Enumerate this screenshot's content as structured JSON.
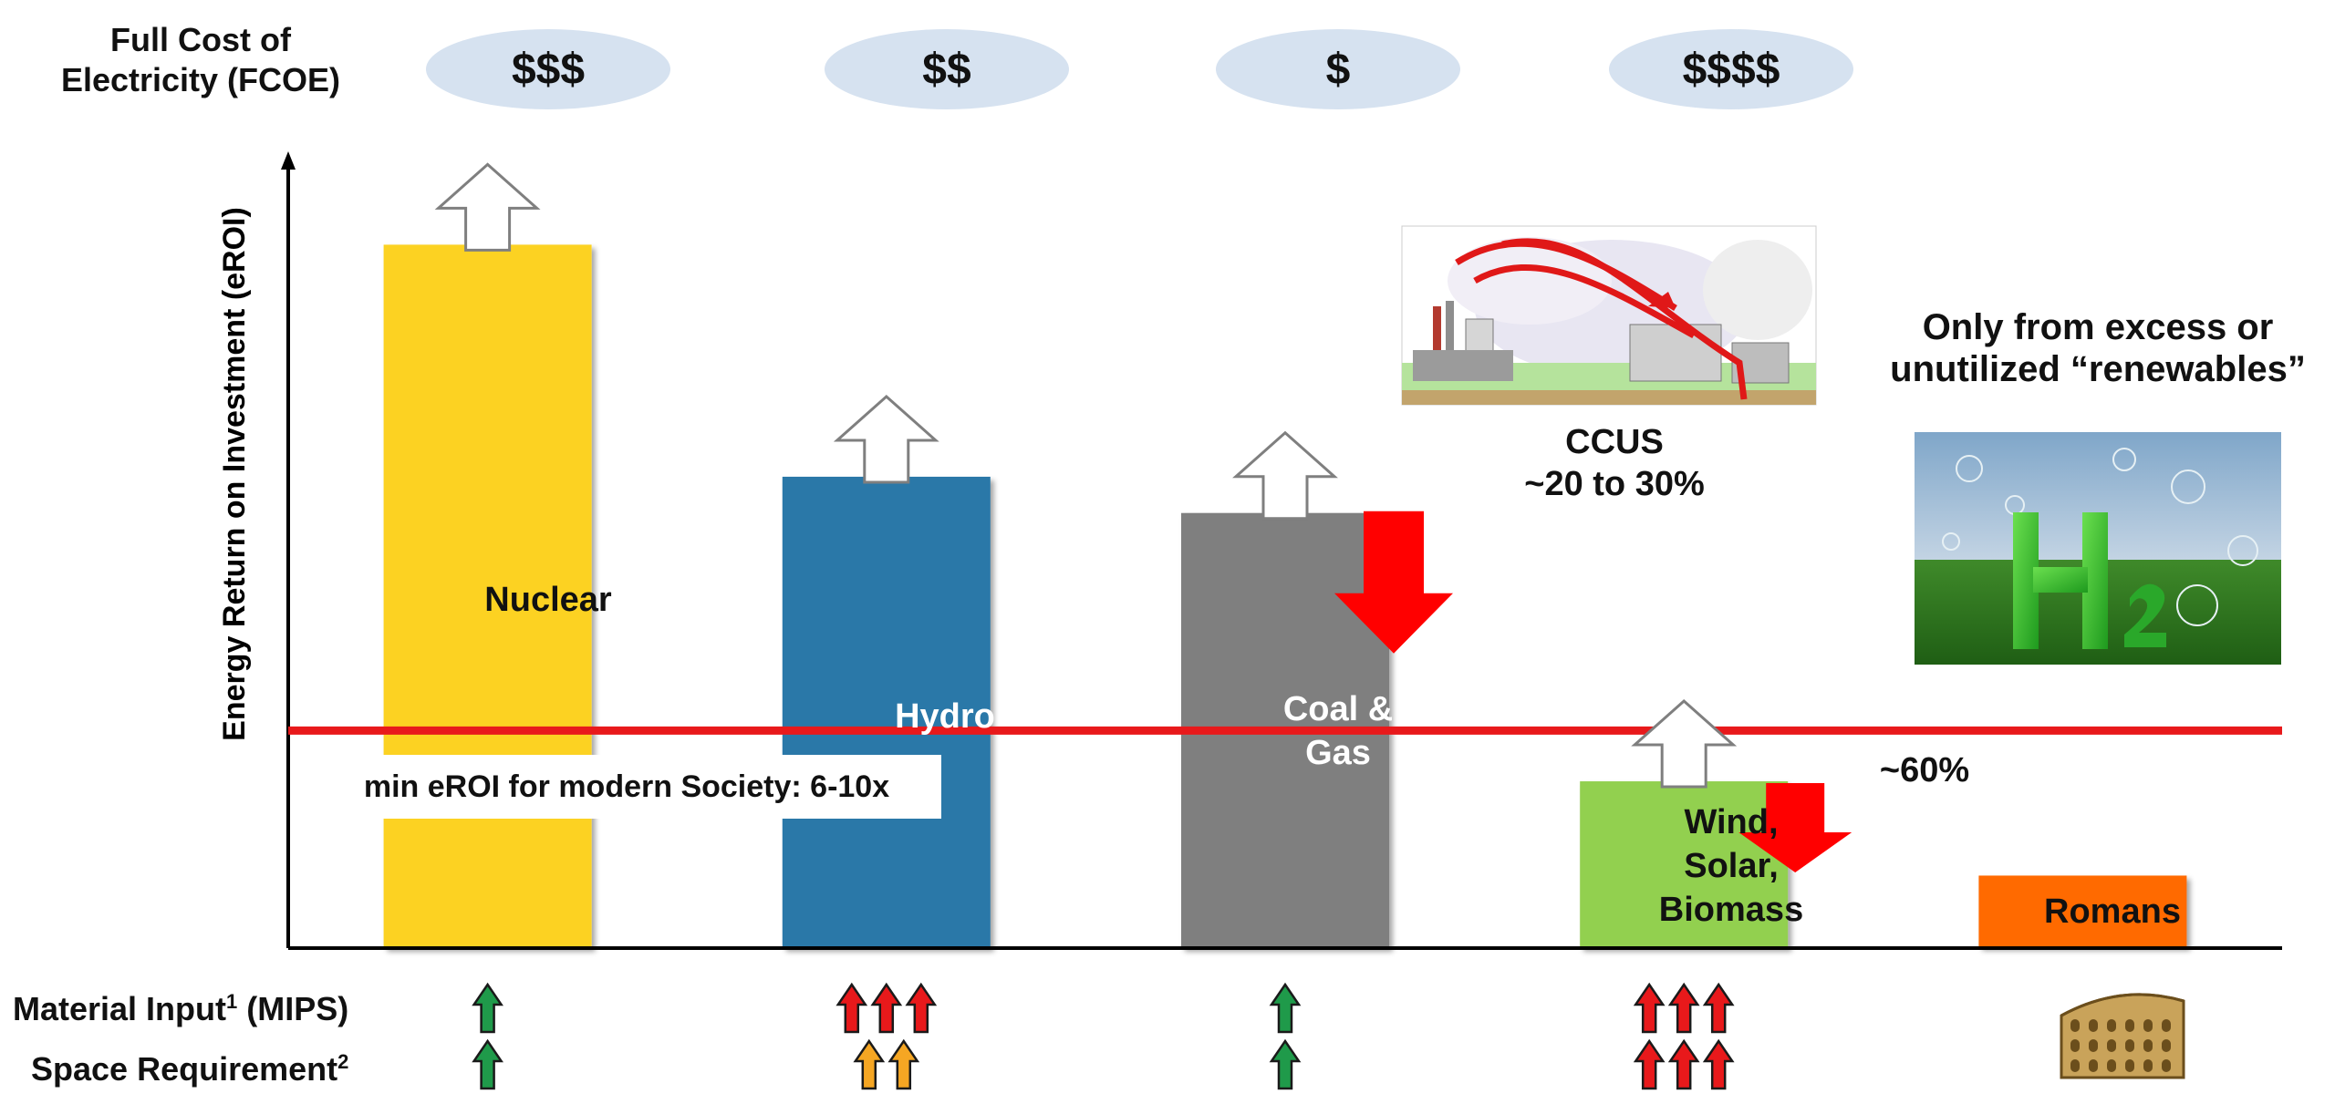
{
  "fcoe": {
    "title_line1": "Full Cost of",
    "title_line2": "Electricity (FCOE)",
    "values": [
      "$$$",
      "$$",
      "$",
      "$$$$"
    ]
  },
  "chart_data": {
    "type": "bar",
    "ylabel": "Energy Return on Investment (eROI)",
    "categories": [
      "Nuclear",
      "Hydro",
      "Coal & Gas",
      "Wind, Solar, Biomass",
      "Romans"
    ],
    "values": [
      0.97,
      0.65,
      0.6,
      0.23,
      0.1
    ],
    "ylim": [
      0,
      1.1
    ],
    "threshold": {
      "value": 0.3,
      "label": "min eROI for modern Society: 6-10x",
      "color": "#e8191b"
    },
    "colors": [
      "#fcd221",
      "#2a78a8",
      "#7f7f7f",
      "#92d050",
      "#ff6a00"
    ],
    "upside_arrows": [
      "Nuclear",
      "Hydro",
      "Coal & Gas",
      "Wind, Solar, Biomass"
    ],
    "penalties": [
      {
        "category": "Coal & Gas",
        "label_line1": "CCUS",
        "label_line2": "~20 to 30%"
      },
      {
        "category": "Wind, Solar, Biomass",
        "label": "~60%"
      }
    ],
    "hydrogen_note": {
      "line1": "Only from excess or",
      "line2": "unutilized “renewables”"
    },
    "material_input_arrows": [
      [
        "green"
      ],
      [
        "red",
        "red",
        "red"
      ],
      [
        "green"
      ],
      [
        "red",
        "red",
        "red"
      ],
      []
    ],
    "space_requirement_arrows": [
      [
        "green"
      ],
      [
        "orange",
        "orange"
      ],
      [
        "green"
      ],
      [
        "red",
        "red",
        "red"
      ],
      []
    ]
  },
  "bar_labels": {
    "nuclear": "Nuclear",
    "hydro": "Hydro",
    "coal_line1": "Coal &",
    "coal_line2": "Gas",
    "wind_line1": "Wind,",
    "wind_line2": "Solar,",
    "wind_line3": "Biomass",
    "romans": "Romans"
  },
  "rows": {
    "material_input": "Material Input",
    "material_input_sup": "1",
    "material_input_tail": " (MIPS)",
    "space_requirement": "Space Requirement",
    "space_requirement_sup": "2"
  },
  "images": {
    "ccus": "power-plant-carbon-capture-illustration",
    "hydrogen": "h2-letters-on-grass-illustration",
    "romans": "colosseum-icon"
  }
}
